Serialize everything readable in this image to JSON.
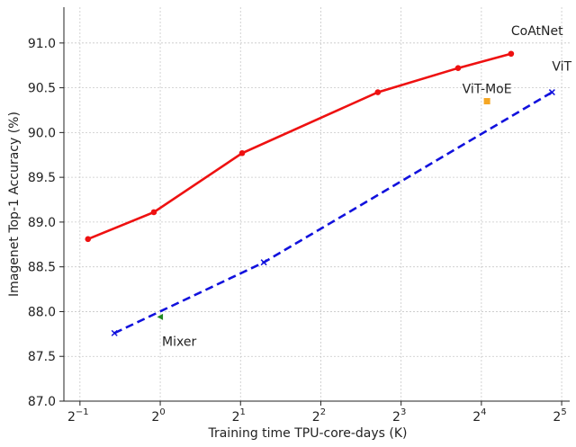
{
  "chart_data": {
    "type": "scatter",
    "title": "",
    "xlabel": "Training time TPU-core-days (K)",
    "ylabel": "Imagenet Top-1 Accuracy (%)",
    "xscale": "log2",
    "xlim_log2": [
      -1.2,
      5.1
    ],
    "ylim": [
      87.0,
      91.4
    ],
    "grid": true,
    "x_ticks": [
      {
        "base": "2",
        "exp": "−1",
        "log2": -1
      },
      {
        "base": "2",
        "exp": "0",
        "log2": 0
      },
      {
        "base": "2",
        "exp": "1",
        "log2": 1
      },
      {
        "base": "2",
        "exp": "2",
        "log2": 2
      },
      {
        "base": "2",
        "exp": "3",
        "log2": 3
      },
      {
        "base": "2",
        "exp": "4",
        "log2": 4
      },
      {
        "base": "2",
        "exp": "5",
        "log2": 5
      }
    ],
    "y_ticks": [
      "87.0",
      "87.5",
      "88.0",
      "88.5",
      "89.0",
      "89.5",
      "90.0",
      "90.5",
      "91.0"
    ],
    "series": [
      {
        "name": "CoAtNet",
        "color": "#ee1111",
        "line": "solid",
        "marker": "circle",
        "x_log2": [
          -0.9,
          -0.08,
          1.02,
          2.71,
          3.71,
          4.37
        ],
        "y": [
          88.81,
          89.11,
          89.77,
          90.45,
          90.72,
          90.88
        ]
      },
      {
        "name": "ViT",
        "color": "#1111dd",
        "line": "dashed",
        "marker": "x",
        "x_log2": [
          -0.57,
          1.29,
          4.88
        ],
        "y": [
          87.76,
          88.55,
          90.45
        ]
      },
      {
        "name": "ViT-MoE",
        "color": "#f5a623",
        "line": "none",
        "marker": "square",
        "x_log2": [
          4.07
        ],
        "y": [
          90.35
        ]
      },
      {
        "name": "Mixer",
        "color": "#228822",
        "line": "none",
        "marker": "triangle-left",
        "x_log2": [
          0.0
        ],
        "y": [
          87.94
        ]
      }
    ]
  }
}
